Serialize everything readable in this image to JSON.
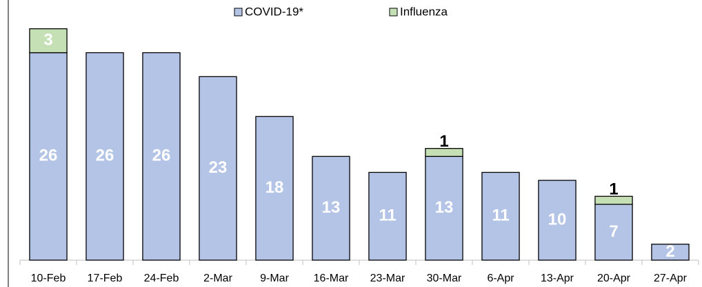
{
  "chart_data": {
    "type": "stacked_bar",
    "categories": [
      "10-Feb",
      "17-Feb",
      "24-Feb",
      "2-Mar",
      "9-Mar",
      "16-Mar",
      "23-Mar",
      "30-Mar",
      "6-Apr",
      "13-Apr",
      "20-Apr",
      "27-Apr"
    ],
    "series": [
      {
        "name": "COVID-19*",
        "color": "#b4c4e7",
        "values": [
          26,
          26,
          26,
          23,
          18,
          13,
          11,
          13,
          11,
          10,
          7,
          2
        ]
      },
      {
        "name": "Influenza",
        "color": "#c5e0b4",
        "values": [
          3,
          null,
          null,
          null,
          null,
          null,
          null,
          1,
          null,
          null,
          1,
          null
        ]
      }
    ],
    "ylim": [
      0,
      32
    ]
  }
}
